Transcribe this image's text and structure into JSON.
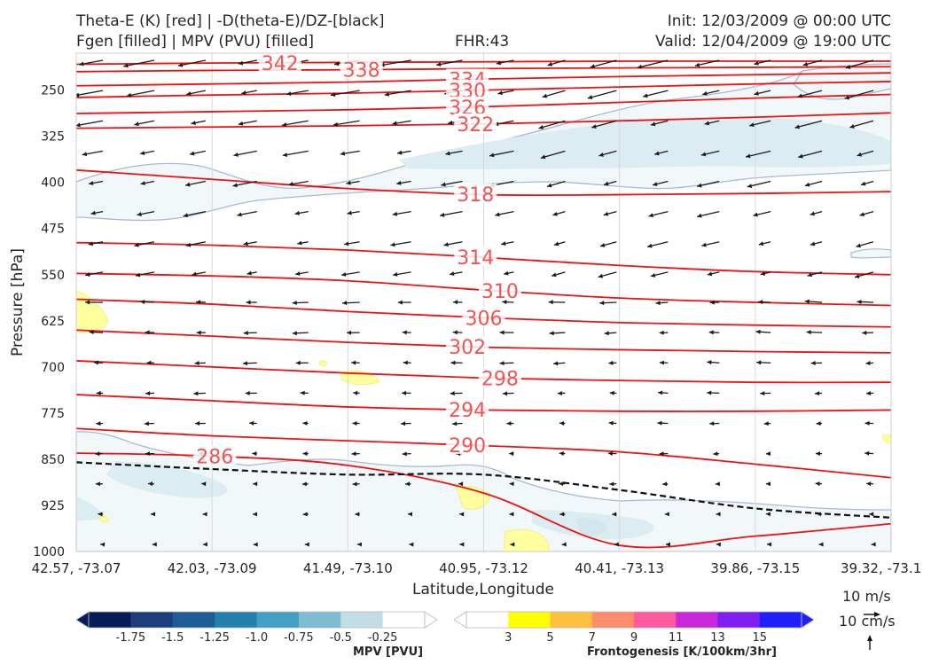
{
  "header": {
    "title_left_1": "Theta-E (K) [red] | -D(theta-E)/DZ-[black]",
    "title_left_2": "Fgen [filled] | MPV (PVU) [filled]",
    "title_center": "FHR:43",
    "title_right_1": "Init: 12/03/2009 @ 00:00 UTC",
    "title_right_2": "Valid: 12/04/2009 @ 19:00 UTC"
  },
  "chart_data": {
    "type": "cross-section",
    "xlabel": "Latitude,Longitude",
    "ylabel": "Pressure [hPa]",
    "x_ticks": [
      "42.57, -73.07",
      "42.03, -73.09",
      "41.49, -73.10",
      "40.95, -73.12",
      "40.41, -73.13",
      "39.86, -73.15",
      "39.32, -73.1"
    ],
    "y_ticks": [
      250,
      325,
      400,
      475,
      550,
      625,
      700,
      775,
      850,
      925,
      1000
    ],
    "ylim": [
      1000,
      190
    ],
    "y_inverted": true,
    "theta_e_contours": [
      {
        "label": "342",
        "p": [
          208,
          206,
          205,
          204,
          203,
          203,
          203
        ]
      },
      {
        "label": "338",
        "p": [
          220,
          218,
          217,
          215,
          214,
          213,
          212
        ]
      },
      {
        "label": "334",
        "p": [
          243,
          240,
          237,
          232,
          228,
          225,
          222
        ]
      },
      {
        "label": "330",
        "p": [
          262,
          258,
          255,
          250,
          245,
          240,
          236
        ]
      },
      {
        "label": "326",
        "p": [
          288,
          285,
          282,
          277,
          270,
          263,
          257
        ]
      },
      {
        "label": "322",
        "p": [
          312,
          310,
          308,
          305,
          300,
          294,
          287
        ]
      },
      {
        "label": "318",
        "p": [
          380,
          395,
          410,
          420,
          420,
          418,
          415
        ]
      },
      {
        "label": "314",
        "p": [
          498,
          502,
          510,
          522,
          535,
          545,
          550
        ]
      },
      {
        "label": "310",
        "p": [
          548,
          552,
          560,
          575,
          588,
          595,
          600
        ]
      },
      {
        "label": "306",
        "p": [
          590,
          598,
          610,
          620,
          628,
          632,
          635
        ]
      },
      {
        "label": "302",
        "p": [
          640,
          650,
          660,
          668,
          672,
          675,
          677
        ]
      },
      {
        "label": "298",
        "p": [
          690,
          700,
          710,
          718,
          722,
          725,
          725
        ]
      },
      {
        "label": "294",
        "p": [
          745,
          755,
          765,
          770,
          772,
          772,
          770
        ]
      },
      {
        "label": "290",
        "p": [
          800,
          812,
          820,
          828,
          838,
          858,
          880
        ]
      },
      {
        "label": "286",
        "p": [
          840,
          845,
          860,
          905,
          990,
          975,
          955
        ]
      }
    ],
    "dtheta_dz_zero_line": {
      "label": "",
      "p": [
        855,
        866,
        875,
        875,
        900,
        930,
        945
      ]
    },
    "mpv_colorbar": {
      "title": "MPV [PVU]",
      "levels": [
        "-1.75",
        "-1.5",
        "-1.25",
        "-1.0",
        "-0.75",
        "-0.5",
        "-0.25"
      ],
      "colors": [
        "#081d58",
        "#1c3e7d",
        "#1f5b95",
        "#2381ad",
        "#41a0c4",
        "#7fbcd2",
        "#c2dde6",
        "#ffffff"
      ]
    },
    "fgen_colorbar": {
      "title": "Frontogenesis [K/100km/3hr]",
      "levels": [
        "3",
        "5",
        "7",
        "9",
        "11",
        "13",
        "15"
      ],
      "colors": [
        "#ffffff",
        "#ffff00",
        "#ffc040",
        "#ff8c6c",
        "#ff5aa0",
        "#c828d8",
        "#8020f0",
        "#2020ff"
      ]
    },
    "quiver_key": {
      "horizontal": "10 m/s",
      "vertical": "10 cm/s"
    },
    "grid": true
  }
}
